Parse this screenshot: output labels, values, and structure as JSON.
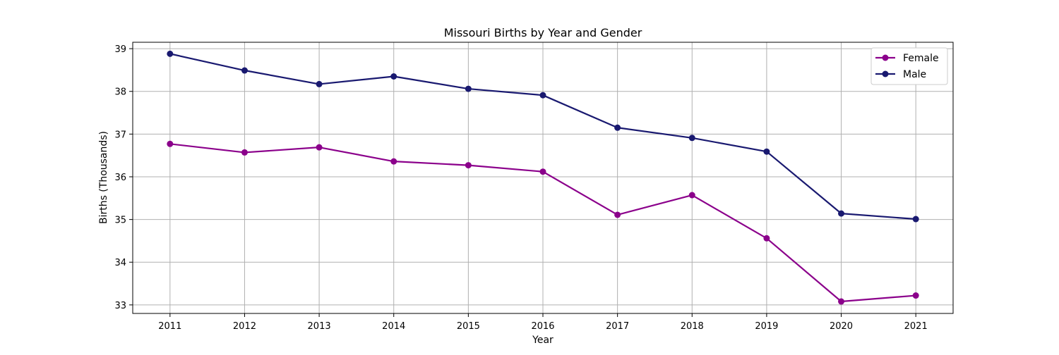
{
  "chart_data": {
    "type": "line",
    "title": "Missouri Births by Year and Gender",
    "xlabel": "Year",
    "ylabel": "Births (Thousands)",
    "x": [
      2011,
      2012,
      2013,
      2014,
      2015,
      2016,
      2017,
      2018,
      2019,
      2020,
      2021
    ],
    "xlim": [
      2010.5,
      2021.5
    ],
    "ylim": [
      32.8,
      39.15
    ],
    "yticks": [
      33,
      34,
      35,
      36,
      37,
      38,
      39
    ],
    "grid": true,
    "legend_position": "top-right",
    "series": [
      {
        "name": "Female",
        "color": "#8b008b",
        "marker": "circle",
        "values": [
          36.77,
          36.57,
          36.69,
          36.36,
          36.27,
          36.12,
          35.11,
          35.57,
          34.56,
          33.08,
          33.22
        ]
      },
      {
        "name": "Male",
        "color": "#191970",
        "marker": "circle",
        "values": [
          38.88,
          38.49,
          38.17,
          38.35,
          38.06,
          37.91,
          37.15,
          36.91,
          36.59,
          35.14,
          35.01
        ]
      }
    ]
  }
}
